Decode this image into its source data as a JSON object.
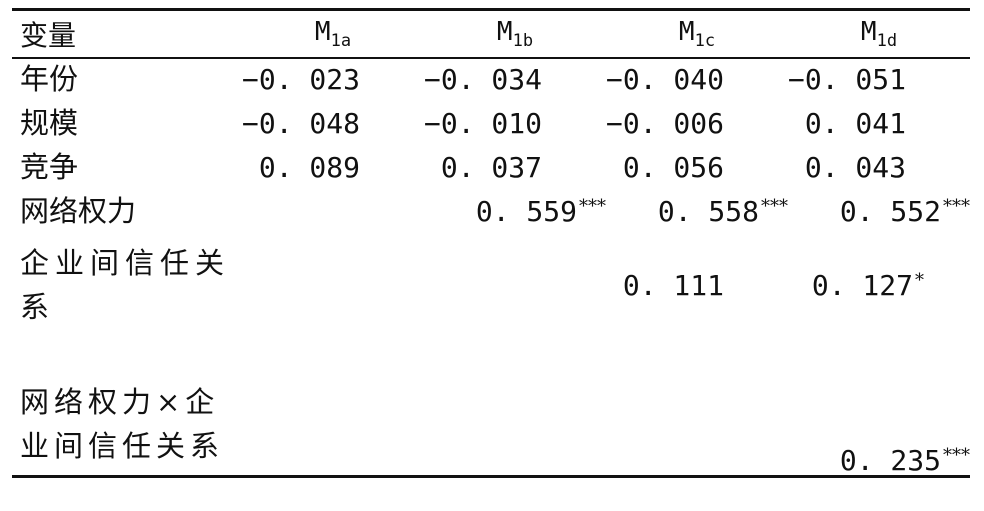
{
  "table": {
    "header": {
      "variable": "变量",
      "models": [
        {
          "main": "M",
          "sub": "1a"
        },
        {
          "main": "M",
          "sub": "1b"
        },
        {
          "main": "M",
          "sub": "1c"
        },
        {
          "main": "M",
          "sub": "1d"
        }
      ]
    },
    "rows": [
      {
        "label": "年份",
        "cells": [
          {
            "v": "−0. 023",
            "s": ""
          },
          {
            "v": "−0. 034",
            "s": ""
          },
          {
            "v": "−0. 040",
            "s": ""
          },
          {
            "v": "−0. 051",
            "s": ""
          }
        ]
      },
      {
        "label": "规模",
        "cells": [
          {
            "v": "−0. 048",
            "s": ""
          },
          {
            "v": "−0. 010",
            "s": ""
          },
          {
            "v": "−0. 006",
            "s": ""
          },
          {
            "v": "0. 041",
            "s": ""
          }
        ]
      },
      {
        "label": "竞争",
        "cells": [
          {
            "v": "0. 089",
            "s": ""
          },
          {
            "v": "0. 037",
            "s": ""
          },
          {
            "v": "0. 056",
            "s": ""
          },
          {
            "v": "0. 043",
            "s": ""
          }
        ]
      },
      {
        "label": "网络权力",
        "cells": [
          {
            "v": "",
            "s": ""
          },
          {
            "v": "0. 559",
            "s": "***"
          },
          {
            "v": "0. 558",
            "s": "***"
          },
          {
            "v": "0. 552",
            "s": "***"
          }
        ]
      },
      {
        "label": "企业间信任关系",
        "cells": [
          {
            "v": "",
            "s": ""
          },
          {
            "v": "",
            "s": ""
          },
          {
            "v": "0. 111",
            "s": ""
          },
          {
            "v": "0. 127",
            "s": "*"
          }
        ]
      },
      {
        "label": "网络权力×企业间信任关系",
        "cells": [
          {
            "v": "",
            "s": ""
          },
          {
            "v": "",
            "s": ""
          },
          {
            "v": "",
            "s": ""
          },
          {
            "v": "0. 235",
            "s": "***"
          }
        ]
      }
    ]
  }
}
